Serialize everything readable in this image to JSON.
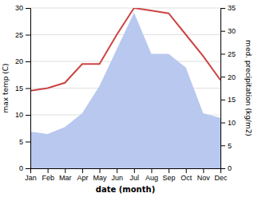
{
  "chart_data": {
    "type": "line",
    "xlabel": "date (month)",
    "ylabel": "max temp (C)",
    "y2label": "med. precipitation (kg/m2)",
    "categories": [
      "Jan",
      "Feb",
      "Mar",
      "Apr",
      "May",
      "Jun",
      "Jul",
      "Aug",
      "Sep",
      "Oct",
      "Nov",
      "Dec"
    ],
    "series": [
      {
        "type": "line",
        "color": "#cc4444",
        "values": [
          14.5,
          15.0,
          16.0,
          19.5,
          19.5,
          25.0,
          30.0,
          29.5,
          29.0,
          25.0,
          21.0,
          16.5
        ]
      },
      {
        "type": "area",
        "axis": "y2",
        "color": "#b8c8ee",
        "values": [
          8.0,
          7.5,
          9.0,
          12.0,
          18.0,
          26.0,
          34.0,
          25.0,
          25.0,
          22.0,
          12.0,
          11.0
        ]
      }
    ],
    "ylim": [
      0,
      30
    ],
    "yticks": [
      0,
      5,
      10,
      15,
      20,
      25,
      30
    ],
    "y2lim": [
      0,
      35
    ],
    "y2ticks": [
      0,
      5,
      10,
      15,
      20,
      25,
      30,
      35
    ],
    "grid": true
  }
}
